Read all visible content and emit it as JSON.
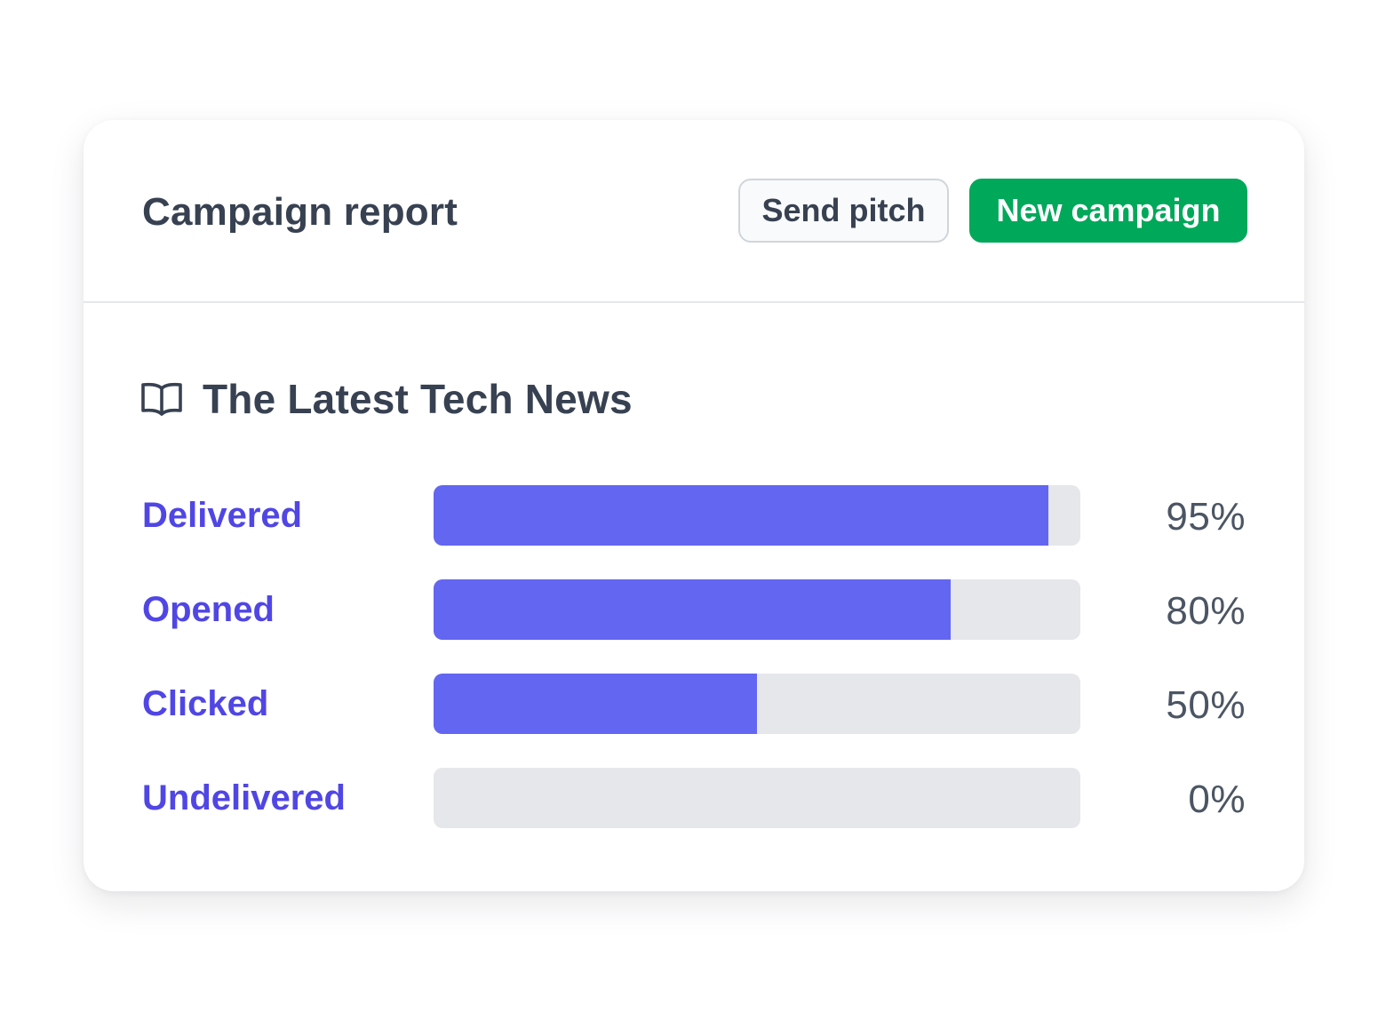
{
  "header": {
    "title": "Campaign report",
    "send_pitch_label": "Send pitch",
    "new_campaign_label": "New campaign"
  },
  "campaign": {
    "icon": "book-open-icon",
    "name": "The Latest Tech News"
  },
  "metrics": [
    {
      "label": "Delivered",
      "percent": 95,
      "value_text": "95%"
    },
    {
      "label": "Opened",
      "percent": 80,
      "value_text": "80%"
    },
    {
      "label": "Clicked",
      "percent": 50,
      "value_text": "50%"
    },
    {
      "label": "Undelivered",
      "percent": 0,
      "value_text": "0%"
    }
  ],
  "colors": {
    "accent": "#6366f1",
    "label": "#5046e5",
    "primary_button": "#00a85a",
    "track": "#e5e7eb",
    "text": "#374151"
  }
}
